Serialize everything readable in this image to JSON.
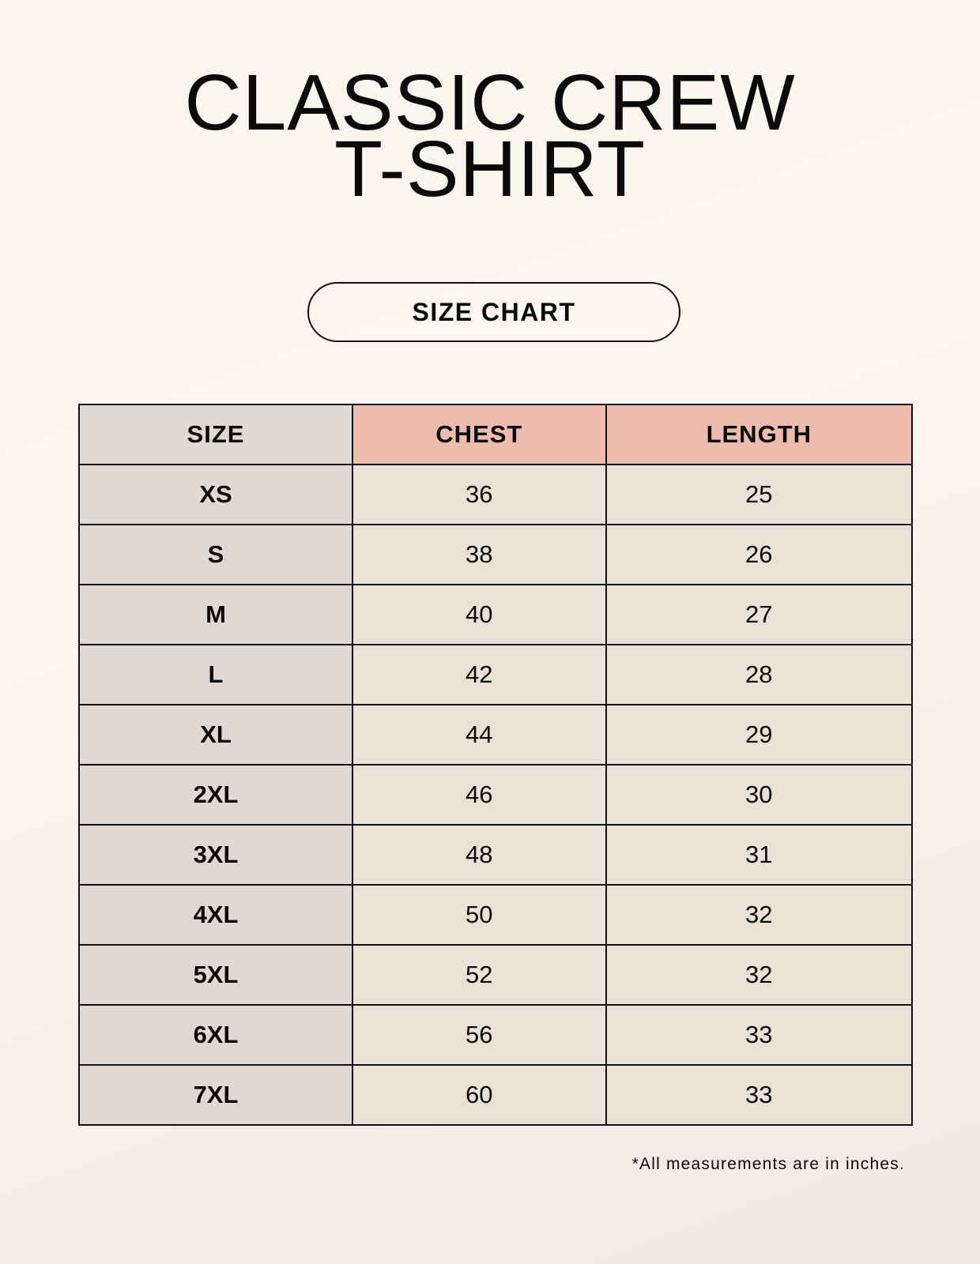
{
  "title": {
    "line1": "CLASSIC CREW",
    "line2": "T-SHIRT"
  },
  "badge": "SIZE CHART",
  "table": {
    "headers": [
      "SIZE",
      "CHEST",
      "LENGTH"
    ],
    "rows": [
      [
        "XS",
        "36",
        "25"
      ],
      [
        "S",
        "38",
        "26"
      ],
      [
        "M",
        "40",
        "27"
      ],
      [
        "L",
        "42",
        "28"
      ],
      [
        "XL",
        "44",
        "29"
      ],
      [
        "2XL",
        "46",
        "30"
      ],
      [
        "3XL",
        "48",
        "31"
      ],
      [
        "4XL",
        "50",
        "32"
      ],
      [
        "5XL",
        "52",
        "32"
      ],
      [
        "6XL",
        "56",
        "33"
      ],
      [
        "7XL",
        "60",
        "33"
      ]
    ]
  },
  "footnote": "*All measurements are in inches.",
  "colors": {
    "size_column": "#e0d8d2",
    "header_accent": "#eebcae",
    "value_cells": "#ebe2d7"
  }
}
